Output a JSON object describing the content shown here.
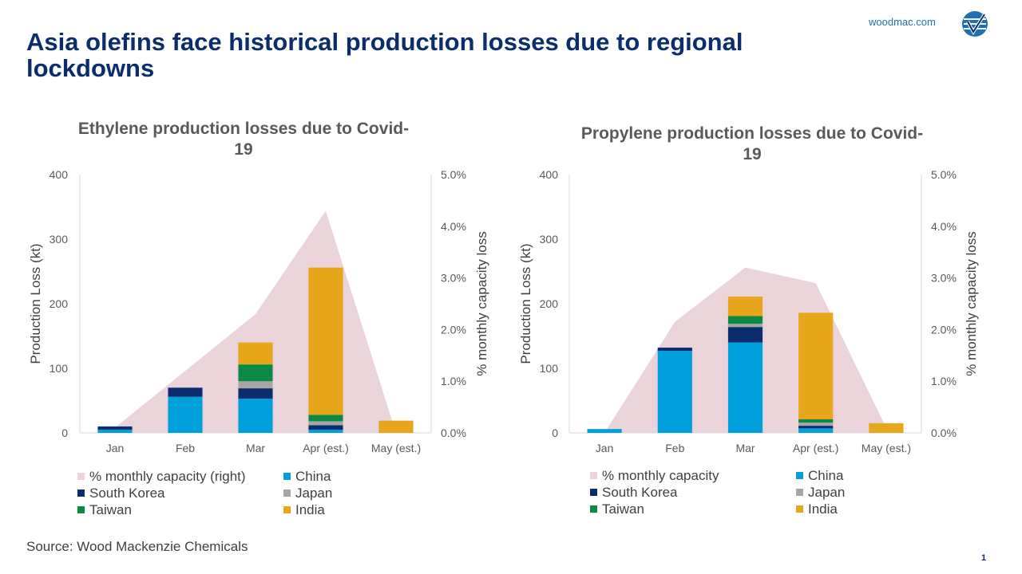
{
  "header": {
    "title": "Asia olefins face historical production losses due to regional lockdowns",
    "site": "woodmac.com"
  },
  "footer": {
    "source": "Source: Wood Mackenzie Chemicals",
    "page_number": "1"
  },
  "colors": {
    "title": "#0b2d6e",
    "pct_area": "#ebd3da",
    "China": "#00a0dc",
    "South Korea": "#0b2d6e",
    "Japan": "#a6a6a6",
    "Taiwan": "#0b8a44",
    "India": "#e8a61a"
  },
  "chart_data": [
    {
      "type": "bar",
      "stacked": true,
      "title": "Ethylene production losses due to Covid-19",
      "ylabel": "Production Loss (kt)",
      "y2label": "% monthly capacity loss",
      "ylim": [
        0,
        400
      ],
      "yticks": [
        "0",
        "100",
        "200",
        "300",
        "400"
      ],
      "y2lim": [
        0,
        5.0
      ],
      "y2ticks": [
        "0.0%",
        "1.0%",
        "2.0%",
        "3.0%",
        "4.0%",
        "5.0%"
      ],
      "categories": [
        "Jan",
        "Feb",
        "Mar",
        "Apr (est.)",
        "May (est.)"
      ],
      "area_series": {
        "name": "% monthly capacity (right)",
        "values": [
          0.1,
          1.2,
          2.3,
          4.3,
          0.0
        ]
      },
      "series": [
        {
          "name": "China",
          "values": [
            5,
            56,
            53,
            5,
            0
          ]
        },
        {
          "name": "South Korea",
          "values": [
            5,
            14,
            16,
            7,
            0
          ]
        },
        {
          "name": "Japan",
          "values": [
            0,
            0,
            11,
            6,
            0
          ]
        },
        {
          "name": "Taiwan",
          "values": [
            0,
            0,
            26,
            10,
            0
          ]
        },
        {
          "name": "India",
          "values": [
            0,
            0,
            34,
            228,
            19
          ]
        }
      ],
      "legend": [
        "% monthly capacity (right)",
        "China",
        "South Korea",
        "Japan",
        "Taiwan",
        "India"
      ],
      "legend_position": "bottom"
    },
    {
      "type": "bar",
      "stacked": true,
      "title": "Propylene production losses due to Covid-19",
      "ylabel": "Production Loss (kt)",
      "y2label": "% monthly capacity loss",
      "ylim": [
        0,
        400
      ],
      "yticks": [
        "0",
        "100",
        "200",
        "300",
        "400"
      ],
      "y2lim": [
        0,
        5.0
      ],
      "y2ticks": [
        "0.0%",
        "1.0%",
        "2.0%",
        "3.0%",
        "4.0%",
        "5.0%"
      ],
      "categories": [
        "Jan",
        "Feb",
        "Mar",
        "Apr (est.)",
        "May (est.)"
      ],
      "area_series": {
        "name": "% monthly capacity",
        "values": [
          0.0,
          2.15,
          3.2,
          2.9,
          0.1
        ]
      },
      "series": [
        {
          "name": "China",
          "values": [
            6,
            127,
            140,
            7,
            0
          ]
        },
        {
          "name": "South Korea",
          "values": [
            0,
            5,
            24,
            4,
            0
          ]
        },
        {
          "name": "Japan",
          "values": [
            0,
            0,
            5,
            5,
            0
          ]
        },
        {
          "name": "Taiwan",
          "values": [
            0,
            0,
            12,
            5,
            0
          ]
        },
        {
          "name": "India",
          "values": [
            0,
            0,
            30,
            165,
            15
          ]
        }
      ],
      "legend": [
        "% monthly capacity",
        "China",
        "South Korea",
        "Japan",
        "Taiwan",
        "India"
      ],
      "legend_position": "bottom"
    }
  ]
}
